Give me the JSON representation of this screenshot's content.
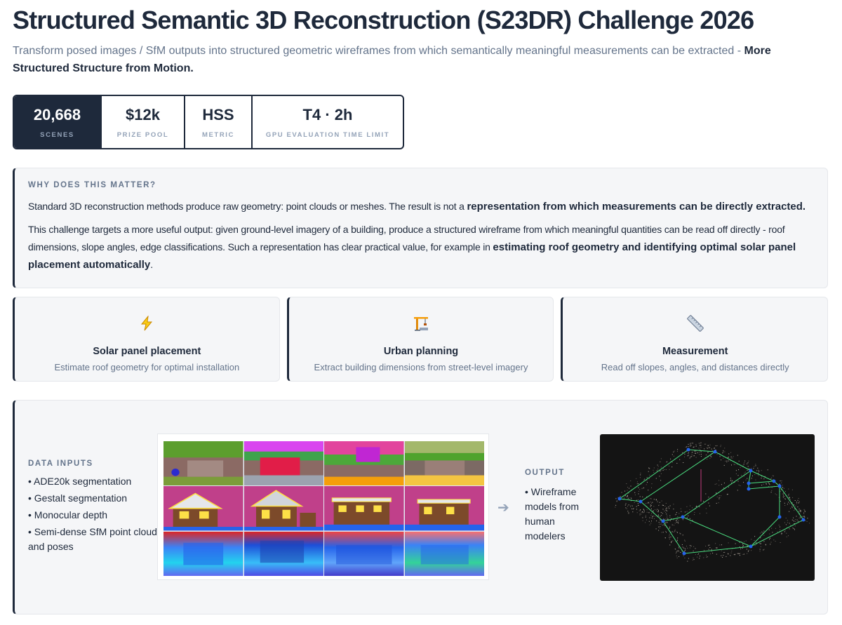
{
  "header": {
    "title": "Structured Semantic 3D Reconstruction (S23DR) Challenge 2026",
    "subtitle_plain": "Transform posed images / SfM outputs into structured geometric wireframes from which semantically meaningful measurements can be extracted - ",
    "subtitle_bold": "More Structured Structure from Motion."
  },
  "stats": [
    {
      "value": "20,668",
      "label": "SCENES"
    },
    {
      "value": "$12k",
      "label": "PRIZE POOL"
    },
    {
      "value": "HSS",
      "label": "METRIC"
    },
    {
      "value": "T4 · 2h",
      "label": "GPU EVALUATION TIME LIMIT"
    }
  ],
  "why": {
    "kicker": "WHY DOES THIS MATTER?",
    "p1_plain": "Standard 3D reconstruction methods produce raw geometry: point clouds or meshes. The result is not a ",
    "p1_bold": "representation from which measurements can be directly extracted.",
    "p2_plain": "This challenge targets a more useful output: given ground-level imagery of a building, produce a structured wireframe from which meaningful quantities can be read off directly - roof dimensions, slope angles, edge classifications. Such a representation has clear practical value, for example in ",
    "p2_bold": "estimating roof geometry and identifying optimal solar panel placement automatically",
    "p2_end": "."
  },
  "cards": [
    {
      "icon": "lightning-icon",
      "title": "Solar panel placement",
      "desc": "Estimate roof geometry for optimal installation"
    },
    {
      "icon": "crane-icon",
      "title": "Urban planning",
      "desc": "Extract building dimensions from street-level imagery"
    },
    {
      "icon": "ruler-icon",
      "title": "Measurement",
      "desc": "Read off slopes, angles, and distances directly"
    }
  ],
  "pipeline": {
    "inputs_kicker": "DATA INPUTS",
    "inputs": [
      "ADE20k segmentation",
      "Gestalt segmentation",
      "Monocular depth",
      "Semi-dense SfM point cloud and poses"
    ],
    "output_kicker": "OUTPUT",
    "output_text": "Wireframe models from human modelers",
    "arrow": "➔"
  },
  "colors": {
    "accent": "#1e293b",
    "muted": "#64748b",
    "panel": "#f5f6f8"
  }
}
